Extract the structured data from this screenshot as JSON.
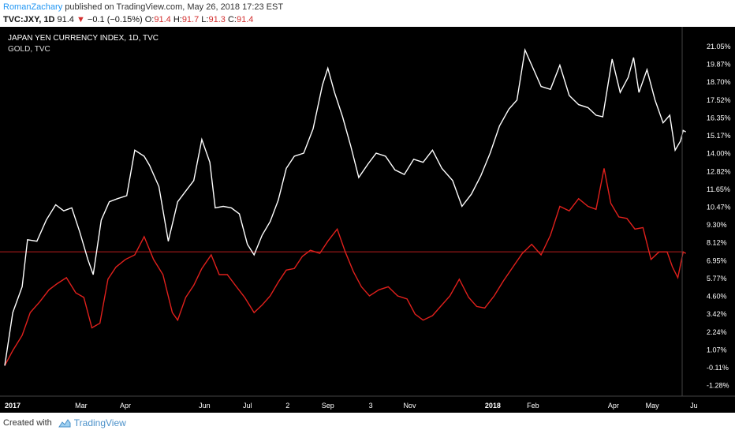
{
  "header": {
    "author": "RomanZachary",
    "published_text": "published on TradingView.com, May 26, 2018 17:23 EST",
    "symbol": "TVC:JXY, 1D",
    "last": "91.4",
    "change": "−0.1 (−0.15%)",
    "o_label": "O:",
    "o_val": "91.4",
    "h_label": "H:",
    "h_val": "91.7",
    "l_label": "L:",
    "l_val": "91.3",
    "c_label": "C:",
    "c_val": "91.4"
  },
  "legend": {
    "main": "JAPAN YEN CURRENCY INDEX, 1D, TVC",
    "compare": "GOLD, TVC"
  },
  "footer": {
    "created_with": "Created with",
    "brand": "TradingView"
  },
  "colors": {
    "background": "#000000",
    "series_main": "#ffffff",
    "series_compare": "#e0201c",
    "axis_text": "#ffffff",
    "ref_line": "#b71c1c"
  },
  "chart_data": {
    "type": "line",
    "y_unit": "percent",
    "ylim": [
      -1.9,
      21.7
    ],
    "y_ticks": [
      "21.05%",
      "19.87%",
      "18.70%",
      "17.52%",
      "16.35%",
      "15.17%",
      "14.00%",
      "12.82%",
      "11.65%",
      "10.47%",
      "9.30%",
      "8.12%",
      "6.95%",
      "5.77%",
      "4.60%",
      "3.42%",
      "2.24%",
      "1.07%",
      "-0.11%",
      "-1.28%"
    ],
    "x_ticks": [
      {
        "label": "2017",
        "bold": true,
        "date": "2017-01-03"
      },
      {
        "label": "Mar",
        "date": "2017-03-01"
      },
      {
        "label": "Apr",
        "date": "2017-04-03"
      },
      {
        "label": "Jun",
        "date": "2017-06-01"
      },
      {
        "label": "Jul",
        "date": "2017-07-03"
      },
      {
        "label": "2",
        "date": "2017-08-02"
      },
      {
        "label": "Sep",
        "date": "2017-09-01"
      },
      {
        "label": "3",
        "date": "2017-10-03"
      },
      {
        "label": "Nov",
        "date": "2017-11-01"
      },
      {
        "label": "2018",
        "bold": true,
        "date": "2018-01-02"
      },
      {
        "label": "Feb",
        "date": "2018-02-01"
      },
      {
        "label": "Apr",
        "date": "2018-04-02"
      },
      {
        "label": "May",
        "date": "2018-05-01"
      },
      {
        "label": "Ju",
        "date": "2018-06-01"
      }
    ],
    "reference_line": 7.5,
    "series": [
      {
        "name": "JAPAN YEN CURRENCY INDEX, 1D, TVC",
        "points": [
          [
            "2017-01-03",
            0.0
          ],
          [
            "2017-01-09",
            3.5
          ],
          [
            "2017-01-16",
            5.2
          ],
          [
            "2017-01-20",
            8.3
          ],
          [
            "2017-01-27",
            8.2
          ],
          [
            "2017-02-03",
            9.6
          ],
          [
            "2017-02-10",
            10.6
          ],
          [
            "2017-02-16",
            10.2
          ],
          [
            "2017-02-22",
            10.4
          ],
          [
            "2017-02-28",
            8.8
          ],
          [
            "2017-03-06",
            7.0
          ],
          [
            "2017-03-10",
            6.0
          ],
          [
            "2017-03-16",
            9.6
          ],
          [
            "2017-03-22",
            10.8
          ],
          [
            "2017-03-28",
            11.0
          ],
          [
            "2017-04-04",
            11.2
          ],
          [
            "2017-04-10",
            14.2
          ],
          [
            "2017-04-17",
            13.8
          ],
          [
            "2017-04-21",
            13.2
          ],
          [
            "2017-04-28",
            11.8
          ],
          [
            "2017-05-05",
            8.2
          ],
          [
            "2017-05-12",
            10.8
          ],
          [
            "2017-05-18",
            11.5
          ],
          [
            "2017-05-24",
            12.2
          ],
          [
            "2017-05-30",
            14.9
          ],
          [
            "2017-06-05",
            13.4
          ],
          [
            "2017-06-09",
            10.4
          ],
          [
            "2017-06-15",
            10.5
          ],
          [
            "2017-06-21",
            10.4
          ],
          [
            "2017-06-27",
            10.0
          ],
          [
            "2017-07-03",
            8.0
          ],
          [
            "2017-07-08",
            7.3
          ],
          [
            "2017-07-14",
            8.6
          ],
          [
            "2017-07-20",
            9.5
          ],
          [
            "2017-07-26",
            10.9
          ],
          [
            "2017-08-01",
            13.0
          ],
          [
            "2017-08-07",
            13.8
          ],
          [
            "2017-08-14",
            14.0
          ],
          [
            "2017-08-21",
            15.6
          ],
          [
            "2017-08-28",
            18.5
          ],
          [
            "2017-09-01",
            19.6
          ],
          [
            "2017-09-06",
            18.0
          ],
          [
            "2017-09-12",
            16.4
          ],
          [
            "2017-09-18",
            14.5
          ],
          [
            "2017-09-24",
            12.4
          ],
          [
            "2017-10-01",
            13.3
          ],
          [
            "2017-10-07",
            14.0
          ],
          [
            "2017-10-14",
            13.8
          ],
          [
            "2017-10-21",
            12.9
          ],
          [
            "2017-10-28",
            12.6
          ],
          [
            "2017-11-04",
            13.6
          ],
          [
            "2017-11-11",
            13.4
          ],
          [
            "2017-11-18",
            14.2
          ],
          [
            "2017-11-25",
            13.0
          ],
          [
            "2017-12-03",
            12.2
          ],
          [
            "2017-12-10",
            10.5
          ],
          [
            "2017-12-17",
            11.3
          ],
          [
            "2017-12-24",
            12.5
          ],
          [
            "2017-12-31",
            14.0
          ],
          [
            "2018-01-07",
            15.8
          ],
          [
            "2018-01-14",
            16.9
          ],
          [
            "2018-01-20",
            17.5
          ],
          [
            "2018-01-26",
            20.8
          ],
          [
            "2018-02-01",
            19.6
          ],
          [
            "2018-02-07",
            18.4
          ],
          [
            "2018-02-14",
            18.2
          ],
          [
            "2018-02-21",
            19.8
          ],
          [
            "2018-02-28",
            17.8
          ],
          [
            "2018-03-07",
            17.2
          ],
          [
            "2018-03-14",
            17.0
          ],
          [
            "2018-03-20",
            16.5
          ],
          [
            "2018-03-25",
            16.4
          ],
          [
            "2018-04-01",
            20.2
          ],
          [
            "2018-04-07",
            18.0
          ],
          [
            "2018-04-13",
            19.0
          ],
          [
            "2018-04-17",
            20.3
          ],
          [
            "2018-04-21",
            18.0
          ],
          [
            "2018-04-27",
            19.5
          ],
          [
            "2018-05-03",
            17.5
          ],
          [
            "2018-05-09",
            16.0
          ],
          [
            "2018-05-14",
            16.5
          ],
          [
            "2018-05-18",
            14.2
          ],
          [
            "2018-05-22",
            14.8
          ],
          [
            "2018-05-24",
            15.5
          ],
          [
            "2018-05-26",
            15.4
          ]
        ]
      },
      {
        "name": "GOLD, TVC",
        "points": [
          [
            "2017-01-03",
            0.0
          ],
          [
            "2017-01-09",
            1.0
          ],
          [
            "2017-01-16",
            2.0
          ],
          [
            "2017-01-22",
            3.5
          ],
          [
            "2017-01-29",
            4.2
          ],
          [
            "2017-02-05",
            5.0
          ],
          [
            "2017-02-11",
            5.4
          ],
          [
            "2017-02-18",
            5.8
          ],
          [
            "2017-02-25",
            4.8
          ],
          [
            "2017-03-03",
            4.5
          ],
          [
            "2017-03-09",
            2.5
          ],
          [
            "2017-03-15",
            2.8
          ],
          [
            "2017-03-21",
            5.7
          ],
          [
            "2017-03-27",
            6.5
          ],
          [
            "2017-04-03",
            7.0
          ],
          [
            "2017-04-10",
            7.3
          ],
          [
            "2017-04-17",
            8.5
          ],
          [
            "2017-04-24",
            7.0
          ],
          [
            "2017-05-01",
            6.0
          ],
          [
            "2017-05-08",
            3.5
          ],
          [
            "2017-05-12",
            3.0
          ],
          [
            "2017-05-18",
            4.5
          ],
          [
            "2017-05-24",
            5.3
          ],
          [
            "2017-05-30",
            6.4
          ],
          [
            "2017-06-06",
            7.3
          ],
          [
            "2017-06-12",
            6.0
          ],
          [
            "2017-06-18",
            6.0
          ],
          [
            "2017-06-24",
            5.3
          ],
          [
            "2017-07-01",
            4.5
          ],
          [
            "2017-07-08",
            3.5
          ],
          [
            "2017-07-14",
            4.0
          ],
          [
            "2017-07-20",
            4.6
          ],
          [
            "2017-07-26",
            5.5
          ],
          [
            "2017-08-01",
            6.3
          ],
          [
            "2017-08-07",
            6.4
          ],
          [
            "2017-08-13",
            7.2
          ],
          [
            "2017-08-19",
            7.6
          ],
          [
            "2017-08-26",
            7.4
          ],
          [
            "2017-09-01",
            8.2
          ],
          [
            "2017-09-08",
            9.0
          ],
          [
            "2017-09-14",
            7.5
          ],
          [
            "2017-09-20",
            6.2
          ],
          [
            "2017-09-26",
            5.2
          ],
          [
            "2017-10-02",
            4.6
          ],
          [
            "2017-10-09",
            5.0
          ],
          [
            "2017-10-16",
            5.2
          ],
          [
            "2017-10-23",
            4.6
          ],
          [
            "2017-10-30",
            4.4
          ],
          [
            "2017-11-05",
            3.4
          ],
          [
            "2017-11-11",
            3.0
          ],
          [
            "2017-11-18",
            3.3
          ],
          [
            "2017-11-25",
            4.0
          ],
          [
            "2017-12-01",
            4.6
          ],
          [
            "2017-12-08",
            5.7
          ],
          [
            "2017-12-15",
            4.5
          ],
          [
            "2017-12-21",
            3.9
          ],
          [
            "2017-12-27",
            3.8
          ],
          [
            "2018-01-03",
            4.6
          ],
          [
            "2018-01-10",
            5.6
          ],
          [
            "2018-01-17",
            6.5
          ],
          [
            "2018-01-24",
            7.4
          ],
          [
            "2018-01-31",
            8.0
          ],
          [
            "2018-02-07",
            7.3
          ],
          [
            "2018-02-14",
            8.6
          ],
          [
            "2018-02-21",
            10.5
          ],
          [
            "2018-02-28",
            10.2
          ],
          [
            "2018-03-07",
            11.0
          ],
          [
            "2018-03-14",
            10.5
          ],
          [
            "2018-03-20",
            10.3
          ],
          [
            "2018-03-26",
            13.0
          ],
          [
            "2018-03-31",
            10.7
          ],
          [
            "2018-04-06",
            9.8
          ],
          [
            "2018-04-12",
            9.7
          ],
          [
            "2018-04-18",
            9.0
          ],
          [
            "2018-04-24",
            9.1
          ],
          [
            "2018-04-30",
            7.0
          ],
          [
            "2018-05-06",
            7.5
          ],
          [
            "2018-05-12",
            7.5
          ],
          [
            "2018-05-16",
            6.5
          ],
          [
            "2018-05-20",
            5.8
          ],
          [
            "2018-05-24",
            7.5
          ],
          [
            "2018-05-26",
            7.4
          ]
        ]
      }
    ]
  }
}
